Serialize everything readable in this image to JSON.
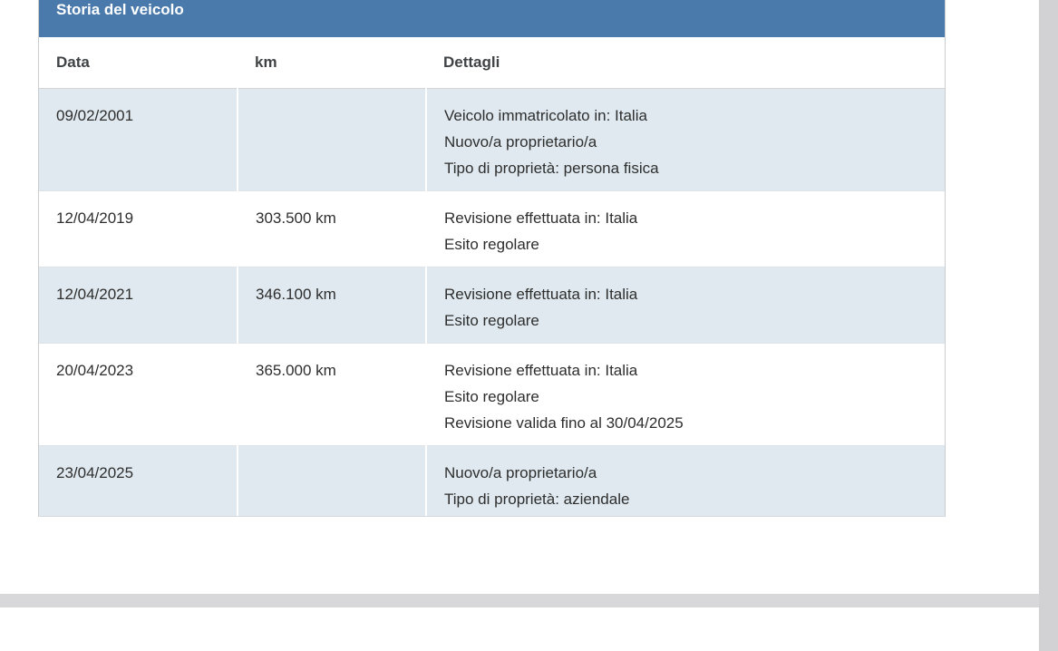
{
  "section": {
    "title": "Storia del veicolo"
  },
  "table": {
    "headers": {
      "data": "Data",
      "km": "km",
      "details": "Dettagli"
    },
    "rows": [
      {
        "date": "09/02/2001",
        "km": "",
        "details": [
          "Veicolo immatricolato in: Italia",
          "Nuovo/a proprietario/a",
          "Tipo di proprietà: persona fisica"
        ]
      },
      {
        "date": "12/04/2019",
        "km": "303.500 km",
        "details": [
          "Revisione effettuata in: Italia",
          "Esito regolare"
        ]
      },
      {
        "date": "12/04/2021",
        "km": "346.100 km",
        "details": [
          "Revisione effettuata in: Italia",
          "Esito regolare"
        ]
      },
      {
        "date": "20/04/2023",
        "km": "365.000 km",
        "details": [
          "Revisione effettuata in: Italia",
          "Esito regolare",
          "Revisione valida fino al 30/04/2025"
        ]
      },
      {
        "date": "23/04/2025",
        "km": "",
        "details": [
          "Nuovo/a proprietario/a",
          "Tipo di proprietà: aziendale"
        ]
      }
    ]
  },
  "colors": {
    "header_blue": "#4a7aab",
    "row_alt_blue": "#dfe9ef",
    "body_text": "#2e2e2e",
    "header_text": "#3f4345",
    "divider_gray": "#d8d8da",
    "gutter_gray": "#d2d2d5"
  }
}
